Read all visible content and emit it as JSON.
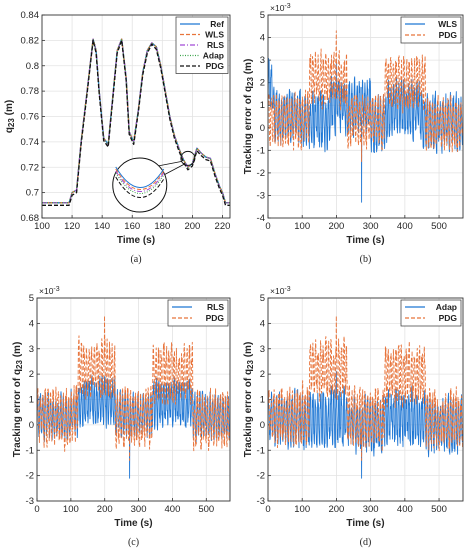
{
  "chart_data": [
    {
      "id": "a",
      "type": "line",
      "caption": "(a)",
      "xlabel": "Time (s)",
      "ylabel": "q_23 (m)",
      "xlim": [
        100,
        225
      ],
      "ylim": [
        0.68,
        0.84
      ],
      "xticks": [
        100,
        120,
        140,
        160,
        180,
        200,
        220
      ],
      "yticks": [
        0.68,
        0.7,
        0.72,
        0.74,
        0.76,
        0.78,
        0.8,
        0.82,
        0.84
      ],
      "ytick_labels": [
        "0.68",
        "0.7",
        "0.72",
        "0.74",
        "0.76",
        "0.78",
        "0.8",
        "0.82",
        "0.84"
      ],
      "grid": true,
      "legend_position": "top-right",
      "x": [
        100,
        118,
        120,
        123,
        126,
        130,
        134,
        136,
        138,
        141,
        144,
        147,
        150,
        153,
        156,
        158,
        161,
        164,
        167,
        170,
        173,
        176,
        179,
        182,
        185,
        188,
        191,
        194,
        197,
        200,
        203,
        206,
        209,
        212,
        215,
        218,
        220,
        222,
        225
      ],
      "series": [
        {
          "name": "Ref",
          "color": "#1f77d4",
          "dash": "",
          "values": [
            0.692,
            0.692,
            0.7,
            0.702,
            0.74,
            0.78,
            0.821,
            0.812,
            0.78,
            0.743,
            0.738,
            0.775,
            0.812,
            0.821,
            0.79,
            0.748,
            0.74,
            0.765,
            0.795,
            0.812,
            0.818,
            0.815,
            0.8,
            0.78,
            0.76,
            0.745,
            0.735,
            0.726,
            0.72,
            0.723,
            0.735,
            0.731,
            0.728,
            0.727,
            0.715,
            0.705,
            0.7,
            0.692,
            0.692
          ]
        },
        {
          "name": "WLS",
          "color": "#e8743b",
          "dash": "4,2",
          "values": [
            0.692,
            0.692,
            0.7,
            0.702,
            0.74,
            0.78,
            0.821,
            0.812,
            0.78,
            0.743,
            0.738,
            0.775,
            0.812,
            0.821,
            0.79,
            0.748,
            0.74,
            0.765,
            0.795,
            0.812,
            0.818,
            0.815,
            0.8,
            0.78,
            0.76,
            0.745,
            0.735,
            0.726,
            0.72,
            0.723,
            0.735,
            0.731,
            0.728,
            0.727,
            0.715,
            0.705,
            0.7,
            0.692,
            0.692
          ]
        },
        {
          "name": "RLS",
          "color": "#a24bd6",
          "dash": "5,2,1,2",
          "values": [
            0.692,
            0.692,
            0.7,
            0.702,
            0.74,
            0.78,
            0.821,
            0.812,
            0.78,
            0.743,
            0.738,
            0.775,
            0.812,
            0.821,
            0.79,
            0.748,
            0.74,
            0.765,
            0.795,
            0.812,
            0.818,
            0.815,
            0.8,
            0.78,
            0.76,
            0.745,
            0.735,
            0.726,
            0.72,
            0.723,
            0.735,
            0.731,
            0.728,
            0.727,
            0.715,
            0.705,
            0.7,
            0.692,
            0.692
          ]
        },
        {
          "name": "Adap",
          "color": "#3aa34a",
          "dash": "1,1.5",
          "values": [
            0.692,
            0.692,
            0.7,
            0.702,
            0.74,
            0.78,
            0.821,
            0.812,
            0.78,
            0.743,
            0.738,
            0.775,
            0.812,
            0.821,
            0.79,
            0.748,
            0.74,
            0.765,
            0.795,
            0.812,
            0.818,
            0.815,
            0.8,
            0.78,
            0.76,
            0.745,
            0.735,
            0.726,
            0.72,
            0.723,
            0.735,
            0.731,
            0.728,
            0.727,
            0.715,
            0.705,
            0.7,
            0.692,
            0.692
          ]
        },
        {
          "name": "PDG",
          "color": "#111111",
          "dash": "4,2",
          "values": [
            0.69,
            0.69,
            0.698,
            0.7,
            0.738,
            0.778,
            0.82,
            0.81,
            0.778,
            0.741,
            0.736,
            0.773,
            0.81,
            0.82,
            0.788,
            0.746,
            0.738,
            0.763,
            0.793,
            0.81,
            0.817,
            0.813,
            0.798,
            0.778,
            0.758,
            0.743,
            0.733,
            0.724,
            0.718,
            0.721,
            0.733,
            0.729,
            0.726,
            0.725,
            0.713,
            0.703,
            0.698,
            0.69,
            0.69
          ]
        }
      ],
      "inset": {
        "center": [
          197,
          0.727
        ],
        "note": "magnified view"
      }
    },
    {
      "id": "b",
      "type": "line",
      "caption": "(b)",
      "xlabel": "Time (s)",
      "ylabel": "Tracking error of q_23 (m)",
      "multiplier": "×10^-3",
      "xlim": [
        0,
        570
      ],
      "ylim": [
        -4,
        5
      ],
      "xticks": [
        0,
        100,
        200,
        300,
        400,
        500
      ],
      "yticks": [
        -4,
        -3,
        -2,
        -1,
        0,
        1,
        2,
        3,
        4,
        5
      ],
      "grid": true,
      "legend_position": "top-right",
      "series": [
        {
          "name": "WLS",
          "color": "#1f77d4",
          "dash": "",
          "segments": [
            [
              0,
              1.8
            ],
            [
              15,
              0.5
            ],
            [
              100,
              0.3
            ],
            [
              180,
              1.0
            ],
            [
              300,
              0.2
            ],
            [
              350,
              0.8
            ],
            [
              450,
              0.3
            ],
            [
              570,
              0.3
            ]
          ],
          "amplitude": 1.6,
          "extremes": {
            "max": 3.0,
            "min": -3.3
          }
        },
        {
          "name": "PDG",
          "color": "#e8743b",
          "dash": "4,2",
          "segments": [
            [
              0,
              0.3
            ],
            [
              100,
              0.5
            ],
            [
              120,
              2.2
            ],
            [
              230,
              0.3
            ],
            [
              340,
              2.0
            ],
            [
              460,
              0.2
            ],
            [
              570,
              0.2
            ]
          ],
          "amplitude": 1.5,
          "extremes": {
            "max": 4.3,
            "min": -1.5
          }
        }
      ]
    },
    {
      "id": "c",
      "type": "line",
      "caption": "(c)",
      "xlabel": "Time (s)",
      "ylabel": "Tracking error of q_23 (m)",
      "multiplier": "×10^-3",
      "xlim": [
        0,
        570
      ],
      "ylim": [
        -3,
        5
      ],
      "xticks": [
        0,
        100,
        200,
        300,
        400,
        500
      ],
      "yticks": [
        -3,
        -2,
        -1,
        0,
        1,
        2,
        3,
        4,
        5
      ],
      "grid": true,
      "legend_position": "top-right",
      "series": [
        {
          "name": "RLS",
          "color": "#1f77d4",
          "dash": "",
          "segments": [
            [
              0,
              0.3
            ],
            [
              100,
              0.4
            ],
            [
              120,
              0.9
            ],
            [
              230,
              0.4
            ],
            [
              340,
              0.8
            ],
            [
              460,
              0.3
            ],
            [
              570,
              0.3
            ]
          ],
          "amplitude": 1.2,
          "extremes": {
            "max": 1.9,
            "min": -2.1
          }
        },
        {
          "name": "PDG",
          "color": "#e8743b",
          "dash": "4,2",
          "segments": [
            [
              0,
              0.3
            ],
            [
              100,
              0.5
            ],
            [
              120,
              2.2
            ],
            [
              230,
              0.3
            ],
            [
              340,
              2.0
            ],
            [
              460,
              0.2
            ],
            [
              570,
              0.2
            ]
          ],
          "amplitude": 1.5,
          "extremes": {
            "max": 4.3,
            "min": -1.4
          }
        }
      ]
    },
    {
      "id": "d",
      "type": "line",
      "caption": "(d)",
      "xlabel": "Time (s)",
      "ylabel": "Tracking error of q_23 (m)",
      "multiplier": "×10^-3",
      "xlim": [
        0,
        570
      ],
      "ylim": [
        -3,
        5
      ],
      "xticks": [
        0,
        100,
        200,
        300,
        400,
        500
      ],
      "yticks": [
        -3,
        -2,
        -1,
        0,
        1,
        2,
        3,
        4,
        5
      ],
      "grid": true,
      "legend_position": "top-right",
      "series": [
        {
          "name": "Adap",
          "color": "#1f77d4",
          "dash": "",
          "segments": [
            [
              0,
              0.2
            ],
            [
              100,
              0.1
            ],
            [
              120,
              0.3
            ],
            [
              230,
              0.0
            ],
            [
              340,
              0.3
            ],
            [
              460,
              0.0
            ],
            [
              570,
              0.0
            ]
          ],
          "amplitude": 1.4,
          "extremes": {
            "max": 2.1,
            "min": -2.1
          }
        },
        {
          "name": "PDG",
          "color": "#e8743b",
          "dash": "4,2",
          "segments": [
            [
              0,
              0.3
            ],
            [
              100,
              0.5
            ],
            [
              120,
              2.2
            ],
            [
              230,
              0.3
            ],
            [
              340,
              2.0
            ],
            [
              460,
              0.2
            ],
            [
              570,
              0.2
            ]
          ],
          "amplitude": 1.5,
          "extremes": {
            "max": 4.3,
            "min": -1.4
          }
        }
      ]
    }
  ]
}
